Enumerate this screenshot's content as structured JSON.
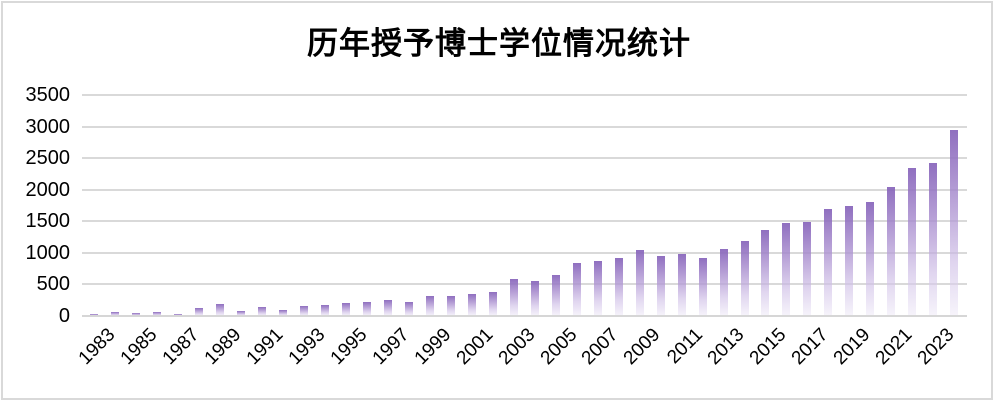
{
  "chart_data": {
    "type": "bar",
    "title": "历年授予博士学位情况统计",
    "xlabel": "",
    "ylabel": "",
    "categories": [
      "1983",
      "1984",
      "1985",
      "1986",
      "1987",
      "1988",
      "1989",
      "1990",
      "1991",
      "1992",
      "1993",
      "1994",
      "1995",
      "1996",
      "1997",
      "1998",
      "1999",
      "2000",
      "2001",
      "2002",
      "2003",
      "2004",
      "2005",
      "2006",
      "2007",
      "2008",
      "2009",
      "2010",
      "2011",
      "2012",
      "2013",
      "2014",
      "2015",
      "2016",
      "2017",
      "2018",
      "2019",
      "2020",
      "2021",
      "2022",
      "2023",
      "2024"
    ],
    "values": [
      30,
      60,
      55,
      65,
      35,
      120,
      185,
      85,
      140,
      100,
      155,
      170,
      210,
      225,
      255,
      220,
      320,
      320,
      350,
      380,
      580,
      555,
      645,
      835,
      875,
      915,
      1040,
      945,
      990,
      920,
      1055,
      1190,
      1360,
      1475,
      1490,
      1690,
      1740,
      1810,
      2040,
      2340,
      2420,
      2950
    ],
    "ylim": [
      0,
      3500
    ],
    "yticks": [
      3500,
      3000,
      2500,
      2000,
      1500,
      1000,
      500,
      0
    ],
    "xticks_shown": [
      "1983",
      "1985",
      "1987",
      "1989",
      "1991",
      "1993",
      "1995",
      "1997",
      "1999",
      "2001",
      "2003",
      "2005",
      "2007",
      "2009",
      "2011",
      "2013",
      "2015",
      "2017",
      "2019",
      "2021",
      "2023"
    ],
    "xtick_rotation_deg": 45,
    "grid": "horizontal",
    "legend": "none",
    "colors": {
      "bar_gradient_top": "#8663ba",
      "bar_gradient_bottom": "#eee9f7",
      "gridline": "#d9d9d9",
      "frame_border": "#d9d9d9",
      "text": "#000000",
      "background": "#ffffff"
    }
  }
}
